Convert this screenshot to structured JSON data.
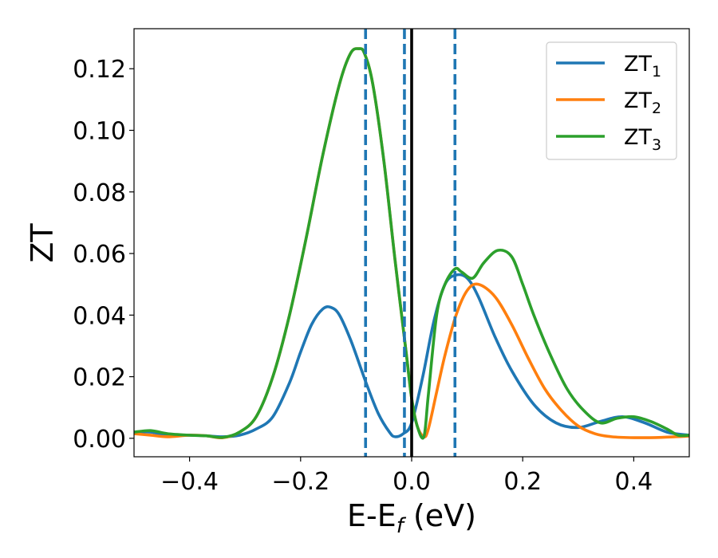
{
  "chart_data": {
    "type": "line",
    "xlabel": "E-E",
    "xlabel_sub": "f",
    "xlabel_unit": " (eV)",
    "ylabel": "ZT",
    "xlim": [
      -0.5,
      0.5
    ],
    "ylim": [
      -0.006,
      0.133
    ],
    "xticks": [
      -0.4,
      -0.2,
      0.0,
      0.2,
      0.4
    ],
    "xtick_labels": [
      "−0.4",
      "−0.2",
      "0.0",
      "0.2",
      "0.4"
    ],
    "yticks": [
      0.0,
      0.02,
      0.04,
      0.06,
      0.08,
      0.1,
      0.12
    ],
    "ytick_labels": [
      "0.00",
      "0.02",
      "0.04",
      "0.06",
      "0.08",
      "0.10",
      "0.12"
    ],
    "legend_position": "top-right",
    "vlines": [
      {
        "x": -0.083,
        "style": "dashed",
        "color": "#1f77b4"
      },
      {
        "x": -0.013,
        "style": "dashed",
        "color": "#1f77b4"
      },
      {
        "x": 0.0,
        "style": "solid",
        "color": "#000000"
      },
      {
        "x": 0.078,
        "style": "dashed",
        "color": "#1f77b4"
      }
    ],
    "series": [
      {
        "name": "ZT",
        "sub": "1",
        "color": "#1f77b4",
        "x": [
          -0.5,
          -0.47,
          -0.44,
          -0.4,
          -0.37,
          -0.34,
          -0.31,
          -0.28,
          -0.25,
          -0.22,
          -0.2,
          -0.18,
          -0.16,
          -0.145,
          -0.13,
          -0.11,
          -0.09,
          -0.08,
          -0.06,
          -0.04,
          -0.03,
          -0.015,
          0.0,
          0.02,
          0.04,
          0.06,
          0.08,
          0.1,
          0.12,
          0.15,
          0.18,
          0.22,
          0.26,
          0.3,
          0.34,
          0.38,
          0.42,
          0.46,
          0.5
        ],
        "y": [
          0.002,
          0.002,
          0.001,
          0.001,
          0.0008,
          0.0005,
          0.001,
          0.003,
          0.007,
          0.018,
          0.028,
          0.037,
          0.042,
          0.0425,
          0.04,
          0.032,
          0.022,
          0.017,
          0.008,
          0.002,
          0.0005,
          0.0015,
          0.005,
          0.02,
          0.038,
          0.05,
          0.053,
          0.052,
          0.046,
          0.033,
          0.022,
          0.011,
          0.005,
          0.0035,
          0.0055,
          0.007,
          0.005,
          0.002,
          0.001
        ]
      },
      {
        "name": "ZT",
        "sub": "2",
        "color": "#ff7f0e",
        "x": [
          -0.5,
          -0.47,
          -0.44,
          -0.4,
          -0.37,
          -0.34,
          -0.31,
          -0.28,
          -0.25,
          -0.22,
          -0.19,
          -0.16,
          -0.13,
          -0.11,
          -0.095,
          -0.085,
          -0.07,
          -0.05,
          -0.03,
          -0.01,
          0.0,
          0.01,
          0.022,
          0.03,
          0.045,
          0.06,
          0.08,
          0.1,
          0.12,
          0.15,
          0.18,
          0.21,
          0.24,
          0.27,
          0.3,
          0.33,
          0.36,
          0.4,
          0.45,
          0.5
        ],
        "y": [
          0.0015,
          0.001,
          0.0005,
          0.001,
          0.0008,
          0.0002,
          0.002,
          0.007,
          0.02,
          0.04,
          0.065,
          0.092,
          0.115,
          0.125,
          0.1265,
          0.125,
          0.115,
          0.09,
          0.058,
          0.028,
          0.013,
          0.004,
          0.0005,
          0.003,
          0.015,
          0.027,
          0.04,
          0.048,
          0.05,
          0.046,
          0.037,
          0.026,
          0.016,
          0.009,
          0.004,
          0.0015,
          0.0005,
          0.0002,
          0.0003,
          0.0007
        ]
      },
      {
        "name": "ZT",
        "sub": "3",
        "color": "#2ca02c",
        "x": [
          -0.5,
          -0.47,
          -0.44,
          -0.4,
          -0.37,
          -0.34,
          -0.31,
          -0.28,
          -0.25,
          -0.22,
          -0.19,
          -0.16,
          -0.13,
          -0.11,
          -0.095,
          -0.085,
          -0.07,
          -0.05,
          -0.03,
          -0.01,
          0.0,
          0.01,
          0.022,
          0.03,
          0.045,
          0.06,
          0.078,
          0.09,
          0.11,
          0.13,
          0.155,
          0.18,
          0.2,
          0.22,
          0.25,
          0.28,
          0.31,
          0.34,
          0.37,
          0.4,
          0.43,
          0.46,
          0.48,
          0.5
        ],
        "y": [
          0.002,
          0.0025,
          0.0015,
          0.001,
          0.0008,
          0.0003,
          0.002,
          0.007,
          0.02,
          0.04,
          0.065,
          0.092,
          0.115,
          0.125,
          0.1265,
          0.125,
          0.115,
          0.09,
          0.058,
          0.028,
          0.013,
          0.004,
          0.0005,
          0.014,
          0.04,
          0.05,
          0.055,
          0.054,
          0.052,
          0.057,
          0.061,
          0.059,
          0.05,
          0.04,
          0.027,
          0.016,
          0.009,
          0.005,
          0.0065,
          0.007,
          0.0055,
          0.003,
          0.001,
          0.001
        ]
      }
    ]
  }
}
